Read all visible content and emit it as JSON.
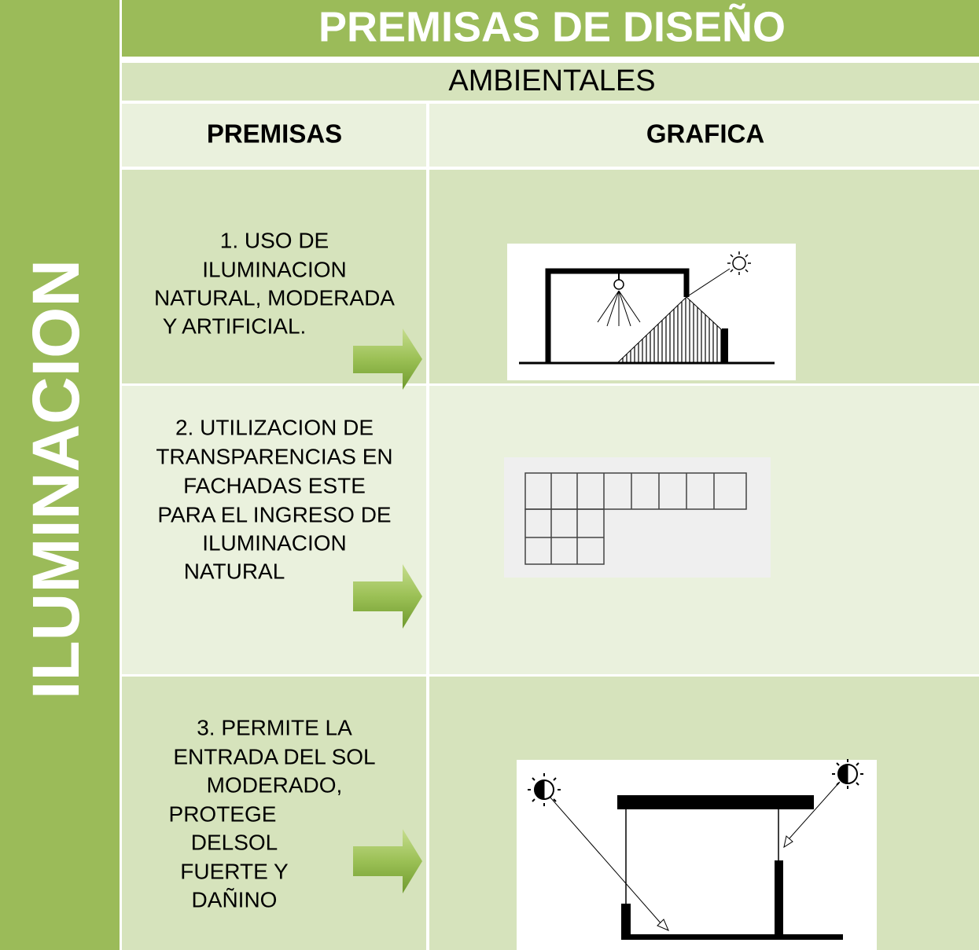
{
  "side_label": "ILUMINACION",
  "header": {
    "title": "PREMISAS DE DISEÑO",
    "subtitle": "AMBIENTALES"
  },
  "table": {
    "columns": [
      "PREMISAS",
      "GRAFICA"
    ],
    "rows": [
      {
        "premise": [
          "1. USO DE",
          "ILUMINACION",
          "NATURAL, MODERADA",
          "Y ARTIFICIAL."
        ]
      },
      {
        "premise": [
          "2. UTILIZACION DE",
          "TRANSPARENCIAS EN",
          "FACHADAS ESTE",
          "PARA EL INGRESO DE",
          "ILUMINACION",
          "NATURAL"
        ]
      },
      {
        "premise": [
          "3. PERMITE LA",
          "ENTRADA DEL SOL",
          "MODERADO,",
          "PROTEGE",
          "DELSOL",
          "FUERTE Y",
          "DAÑINO"
        ]
      }
    ]
  }
}
